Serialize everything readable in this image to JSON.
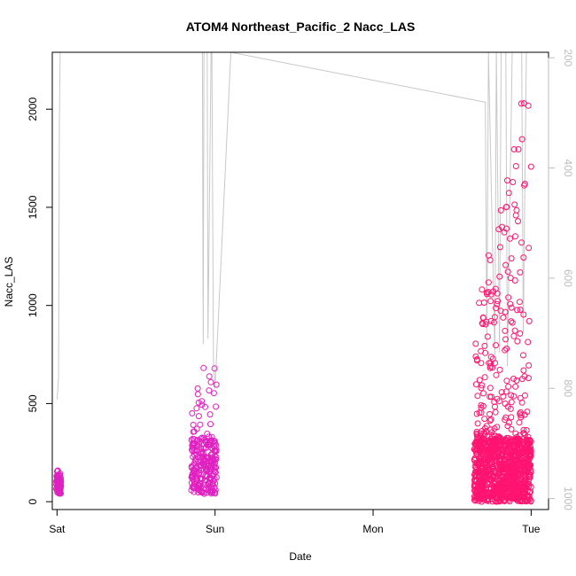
{
  "chart_data": {
    "type": "scatter",
    "title": "ATOM4 Northeast_Pacific_2 Nacc_LAS",
    "xlabel": "Date",
    "ylabel": "Nacc_LAS",
    "x_ticks": [
      "Sat",
      "Sun",
      "Mon",
      "Tue"
    ],
    "xlim": [
      -0.03,
      3.11
    ],
    "ylim": [
      -40,
      2290
    ],
    "y_ticks": [
      0,
      500,
      1000,
      1500,
      2000
    ],
    "y2_label": "",
    "y2_ticks": [
      200,
      400,
      600,
      800,
      1000
    ],
    "y2lim": [
      1020,
      190
    ],
    "grid": false,
    "legend": "none",
    "colors": {
      "points_early": "#e020c0",
      "points_late": "#ff1470",
      "secondary_line": "#c8c8c8"
    },
    "series": [
      {
        "marker": "open-circle",
        "clusters": [
          {
            "x_center": 0.01,
            "x_spread": 0.015,
            "count": 90,
            "y_low": 40,
            "y_high": 130,
            "y_max": 190
          },
          {
            "x_center": 0.93,
            "x_spread": 0.08,
            "count": 260,
            "y_low": 40,
            "y_high": 320,
            "y_max": 850
          },
          {
            "x_center": 2.82,
            "x_spread": 0.18,
            "count": 1200,
            "y_low": 0,
            "y_high": 320,
            "y_max": 2280
          }
        ]
      },
      {
        "type": "line",
        "axis": "right",
        "x": [
          0.0,
          0.01,
          0.015,
          0.02,
          0.025,
          0.92,
          0.925,
          0.93,
          0.95,
          0.955,
          0.975,
          0.98,
          0.99,
          1.0,
          1.1,
          2.7,
          2.71,
          2.72,
          2.73,
          2.77,
          2.78,
          2.8,
          2.81,
          2.84,
          2.85,
          2.88,
          2.89,
          2.94,
          2.95,
          2.97,
          2.98,
          3.0
        ],
        "y": [
          820,
          780,
          320,
          190,
          190,
          190,
          720,
          190,
          190,
          710,
          190,
          190,
          750,
          800,
          190,
          280,
          280,
          720,
          190,
          740,
          190,
          735,
          190,
          190,
          760,
          190,
          190,
          190,
          700,
          190,
          190,
          190
        ]
      }
    ]
  }
}
